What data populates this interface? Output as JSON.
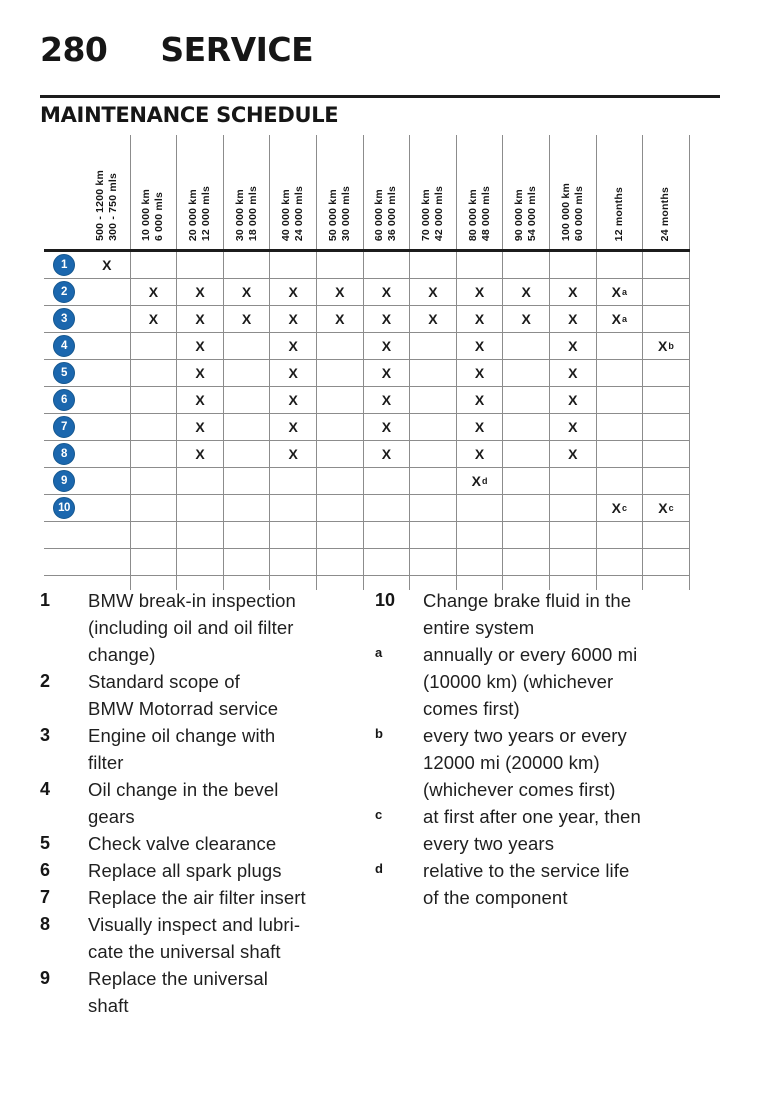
{
  "header": {
    "page_number": "280",
    "section_title": "SERVICE"
  },
  "schedule": {
    "title": "MAINTENANCE SCHEDULE",
    "columns": [
      {
        "line1": "500 - 1200 km",
        "line2": "300 - 750 mls"
      },
      {
        "line1": "10 000 km",
        "line2": "6 000 mls"
      },
      {
        "line1": "20 000 km",
        "line2": "12 000 mls"
      },
      {
        "line1": "30 000 km",
        "line2": "18 000 mls"
      },
      {
        "line1": "40 000 km",
        "line2": "24 000 mls"
      },
      {
        "line1": "50 000 km",
        "line2": "30 000 mls"
      },
      {
        "line1": "60 000 km",
        "line2": "36 000 mls"
      },
      {
        "line1": "70 000 km",
        "line2": "42 000 mls"
      },
      {
        "line1": "80 000 km",
        "line2": "48 000 mls"
      },
      {
        "line1": "90 000 km",
        "line2": "54 000 mls"
      },
      {
        "line1": "100 000 km",
        "line2": "60 000 mls"
      },
      {
        "line1": "12 months",
        "line2": ""
      },
      {
        "line1": "24 months",
        "line2": ""
      }
    ],
    "rows": [
      {
        "num": "1",
        "marks": [
          "X",
          "",
          "",
          "",
          "",
          "",
          "",
          "",
          "",
          "",
          "",
          "",
          ""
        ]
      },
      {
        "num": "2",
        "marks": [
          "",
          "X",
          "X",
          "X",
          "X",
          "X",
          "X",
          "X",
          "X",
          "X",
          "X",
          "X^a",
          ""
        ]
      },
      {
        "num": "3",
        "marks": [
          "",
          "X",
          "X",
          "X",
          "X",
          "X",
          "X",
          "X",
          "X",
          "X",
          "X",
          "X^a",
          ""
        ]
      },
      {
        "num": "4",
        "marks": [
          "",
          "",
          "X",
          "",
          "X",
          "",
          "X",
          "",
          "X",
          "",
          "X",
          "",
          "X^b"
        ]
      },
      {
        "num": "5",
        "marks": [
          "",
          "",
          "X",
          "",
          "X",
          "",
          "X",
          "",
          "X",
          "",
          "X",
          "",
          ""
        ]
      },
      {
        "num": "6",
        "marks": [
          "",
          "",
          "X",
          "",
          "X",
          "",
          "X",
          "",
          "X",
          "",
          "X",
          "",
          ""
        ]
      },
      {
        "num": "7",
        "marks": [
          "",
          "",
          "X",
          "",
          "X",
          "",
          "X",
          "",
          "X",
          "",
          "X",
          "",
          ""
        ]
      },
      {
        "num": "8",
        "marks": [
          "",
          "",
          "X",
          "",
          "X",
          "",
          "X",
          "",
          "X",
          "",
          "X",
          "",
          ""
        ]
      },
      {
        "num": "9",
        "marks": [
          "",
          "",
          "",
          "",
          "",
          "",
          "",
          "",
          "X^d",
          "",
          "",
          "",
          ""
        ]
      },
      {
        "num": "10",
        "marks": [
          "",
          "",
          "",
          "",
          "",
          "",
          "",
          "",
          "",
          "",
          "",
          "X^c",
          "X^c"
        ]
      },
      {
        "num": "",
        "marks": [
          "",
          "",
          "",
          "",
          "",
          "",
          "",
          "",
          "",
          "",
          "",
          "",
          ""
        ]
      },
      {
        "num": "",
        "marks": [
          "",
          "",
          "",
          "",
          "",
          "",
          "",
          "",
          "",
          "",
          "",
          "",
          ""
        ]
      }
    ],
    "circle_color": "#1b67ae",
    "mark_glyph": "X"
  },
  "legend": {
    "left": [
      {
        "marker": "1",
        "style": "number",
        "text": "BMW break-in inspection\n(including oil and oil filter\nchange)"
      },
      {
        "marker": "2",
        "style": "number",
        "text": "Standard scope of\nBMW Motorrad service"
      },
      {
        "marker": "3",
        "style": "number",
        "text": "Engine oil change with\nfilter"
      },
      {
        "marker": "4",
        "style": "number",
        "text": "Oil change in the bevel\ngears"
      },
      {
        "marker": "5",
        "style": "number",
        "text": "Check valve clearance"
      },
      {
        "marker": "6",
        "style": "number",
        "text": "Replace all spark plugs"
      },
      {
        "marker": "7",
        "style": "number",
        "text": "Replace the air filter insert"
      },
      {
        "marker": "8",
        "style": "number",
        "text": "Visually inspect and lubri-\ncate the universal shaft"
      },
      {
        "marker": "9",
        "style": "number",
        "text": "Replace the universal\nshaft"
      }
    ],
    "right": [
      {
        "marker": "10",
        "style": "number",
        "text": "Change brake fluid in the\nentire system"
      },
      {
        "marker": "a",
        "style": "sup",
        "text": "annually or every 6000 mi\n(10000 km) (whichever\ncomes first)"
      },
      {
        "marker": "b",
        "style": "sup",
        "text": "every two years or every\n12000 mi (20000 km)\n(whichever comes first)"
      },
      {
        "marker": "c",
        "style": "sup",
        "text": "at first after one year, then\nevery two years"
      },
      {
        "marker": "d",
        "style": "sup",
        "text": "relative to the service life\nof the component"
      }
    ]
  }
}
